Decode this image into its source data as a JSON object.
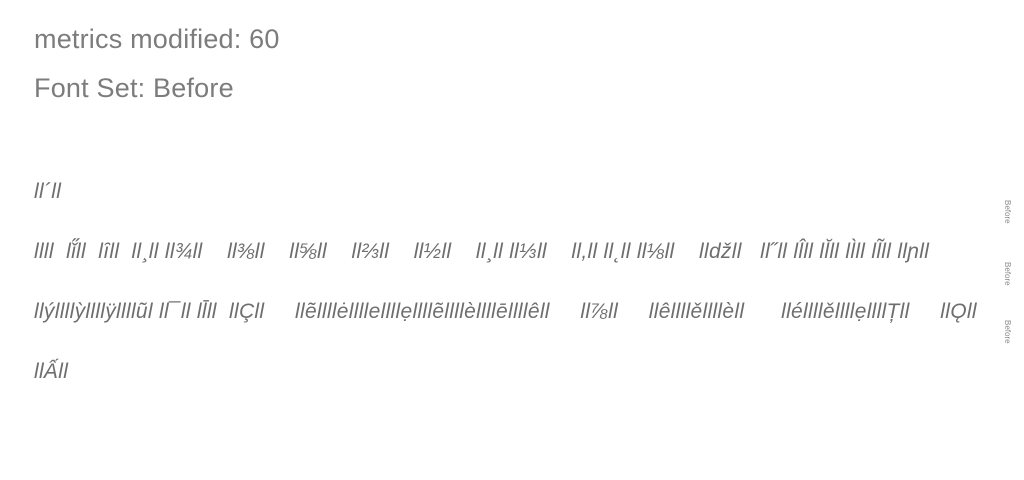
{
  "header": {
    "metrics": "metrics modified: 60",
    "font_set": "Font Set: Before"
  },
  "samples": [
    "ll´ll",
    "llll  lǐ̋ll  lȋll  ll¸ll ll¾ll    ll⅜ll    ll⅝ll    ll⅔ll    ll½ll    ll¸ll ll⅓ll    ll,ll ll˛ll ll⅛ll    lldžll   ll˝ll ll̂ll ll̆ll ll̀ll ll̃ll llɲll",
    "llýllllỳllllÿllllũl ll¯ll ll̄ll  llÇll     llẽllllėllllellllẹllllẽllllèllllēllllêll     ll⅞ll     llêllllěllllèll      lléllllěllllẹllllȚll     llǪll",
    "llẤll"
  ],
  "side_labels": [
    "Before",
    "Before",
    "Before"
  ]
}
